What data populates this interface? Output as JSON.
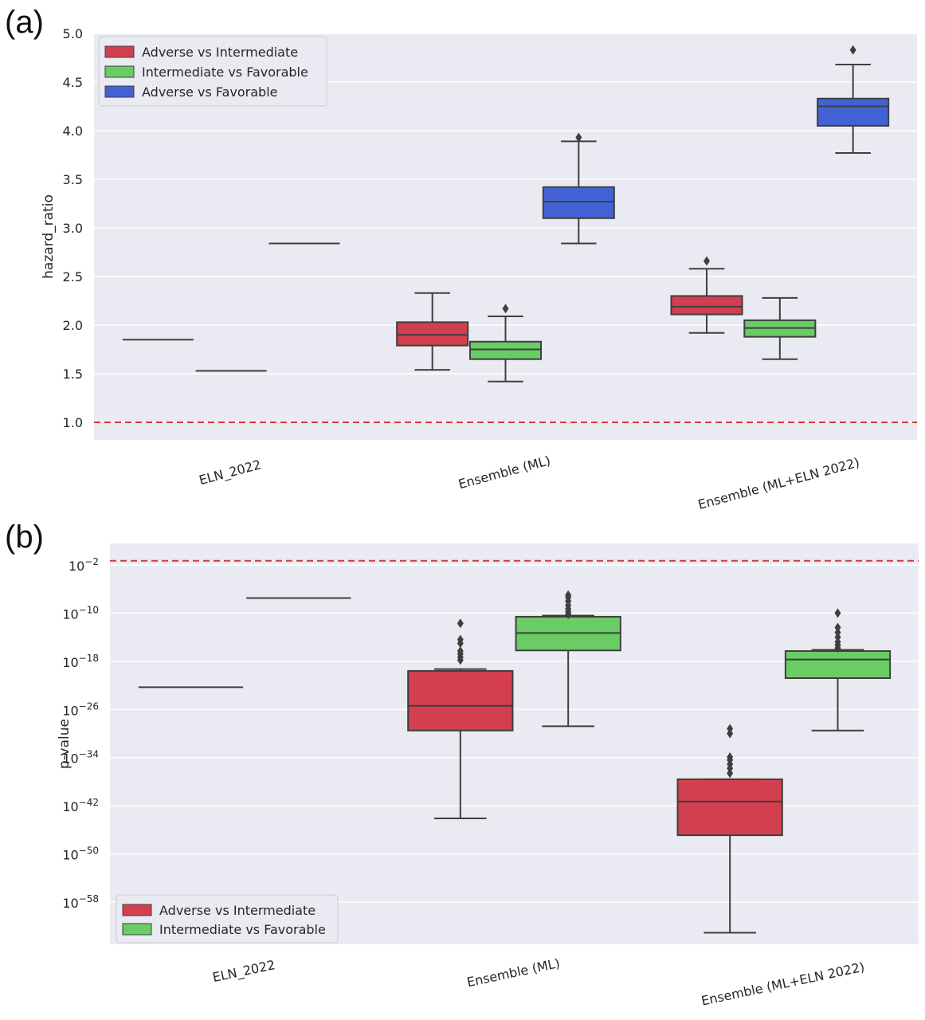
{
  "panels": {
    "a": {
      "letter": "(a)"
    },
    "b": {
      "letter": "(b)"
    }
  },
  "chart_data": [
    {
      "type": "box",
      "ylabel": "hazard_ratio",
      "xlabel": "",
      "categories": [
        "ELN_2022",
        "Ensemble (ML)",
        "Ensemble (ML+ELN 2022)"
      ],
      "ylim": [
        0.9,
        5.0
      ],
      "yticks": [
        "1.0",
        "1.5",
        "2.0",
        "2.5",
        "3.0",
        "3.5",
        "4.0",
        "4.5",
        "5.0"
      ],
      "grid": true,
      "reference_line": {
        "y": 1.0,
        "style": "dashed",
        "color": "#d23a3a"
      },
      "legend_position": "top-left",
      "series": [
        {
          "name": "Adverse vs Intermediate",
          "color": "#d33f4f",
          "boxes": [
            {
              "whislo": 1.85,
              "q1": 1.85,
              "med": 1.85,
              "q3": 1.85,
              "whishi": 1.85,
              "fliers": []
            },
            {
              "whislo": 1.54,
              "q1": 1.79,
              "med": 1.9,
              "q3": 2.03,
              "whishi": 2.33,
              "fliers": []
            },
            {
              "whislo": 1.92,
              "q1": 2.11,
              "med": 2.19,
              "q3": 2.3,
              "whishi": 2.58,
              "fliers": [
                2.66
              ]
            }
          ]
        },
        {
          "name": "Intermediate vs Favorable",
          "color": "#6acc64",
          "boxes": [
            {
              "whislo": 1.53,
              "q1": 1.53,
              "med": 1.53,
              "q3": 1.53,
              "whishi": 1.53,
              "fliers": []
            },
            {
              "whislo": 1.42,
              "q1": 1.65,
              "med": 1.75,
              "q3": 1.83,
              "whishi": 2.09,
              "fliers": [
                2.17
              ]
            },
            {
              "whislo": 1.65,
              "q1": 1.88,
              "med": 1.97,
              "q3": 2.05,
              "whishi": 2.28,
              "fliers": []
            }
          ]
        },
        {
          "name": "Adverse vs Favorable",
          "color": "#4262d4",
          "boxes": [
            {
              "whislo": 2.84,
              "q1": 2.84,
              "med": 2.84,
              "q3": 2.84,
              "whishi": 2.84,
              "fliers": []
            },
            {
              "whislo": 2.84,
              "q1": 3.1,
              "med": 3.27,
              "q3": 3.42,
              "whishi": 3.89,
              "fliers": [
                3.93
              ]
            },
            {
              "whislo": 3.77,
              "q1": 4.05,
              "med": 4.25,
              "q3": 4.33,
              "whishi": 4.68,
              "fliers": [
                4.83
              ]
            }
          ]
        }
      ]
    },
    {
      "type": "box",
      "ylabel": "p-value",
      "xlabel": "",
      "categories": [
        "ELN_2022",
        "Ensemble (ML)",
        "Ensemble (ML+ELN 2022)"
      ],
      "yscale": "log",
      "ylim_exponent": [
        -63,
        0
      ],
      "yticks": [
        {
          "base": "10",
          "exp": "−2"
        },
        {
          "base": "10",
          "exp": "−10"
        },
        {
          "base": "10",
          "exp": "−18"
        },
        {
          "base": "10",
          "exp": "−26"
        },
        {
          "base": "10",
          "exp": "−34"
        },
        {
          "base": "10",
          "exp": "−42"
        },
        {
          "base": "10",
          "exp": "−50"
        },
        {
          "base": "10",
          "exp": "−58"
        }
      ],
      "grid": true,
      "reference_line": {
        "y_exponent": -1.3,
        "style": "dashed",
        "color": "#d23a3a"
      },
      "legend_position": "bottom-left",
      "series": [
        {
          "name": "Adverse vs Intermediate",
          "color": "#d33f4f",
          "boxes_exponent": [
            {
              "whislo": -22.3,
              "q1": -22.3,
              "med": -22.3,
              "q3": -22.3,
              "whishi": -22.3,
              "fliers": []
            },
            {
              "whislo": -44.1,
              "q1": -29.5,
              "med": -25.4,
              "q3": -19.6,
              "whishi": -19.3,
              "fliers": [
                -17.8,
                -17.3,
                -16.8,
                -16.3,
                -15.0,
                -14.4,
                -11.7
              ]
            },
            {
              "whislo": -63.1,
              "q1": -46.9,
              "med": -41.3,
              "q3": -37.6,
              "whishi": -37.6,
              "fliers": [
                -36.6,
                -35.8,
                -35.1,
                -34.4,
                -33.9,
                -30.0,
                -29.2
              ]
            }
          ]
        },
        {
          "name": "Intermediate vs Favorable",
          "color": "#6acc64",
          "boxes_exponent": [
            {
              "whislo": -7.5,
              "q1": -7.5,
              "med": -7.5,
              "q3": -7.5,
              "whishi": -7.5,
              "fliers": []
            },
            {
              "whislo": -28.8,
              "q1": -16.2,
              "med": -13.3,
              "q3": -10.6,
              "whishi": -10.4,
              "fliers": [
                -10.2,
                -9.8,
                -9.3,
                -8.7,
                -8.0,
                -7.4,
                -7.0
              ]
            },
            {
              "whislo": -29.5,
              "q1": -20.8,
              "med": -17.7,
              "q3": -16.3,
              "whishi": -16.1,
              "fliers": [
                -15.8,
                -15.3,
                -14.8,
                -14.0,
                -13.2,
                -12.4,
                -10.0
              ]
            }
          ]
        }
      ]
    }
  ]
}
